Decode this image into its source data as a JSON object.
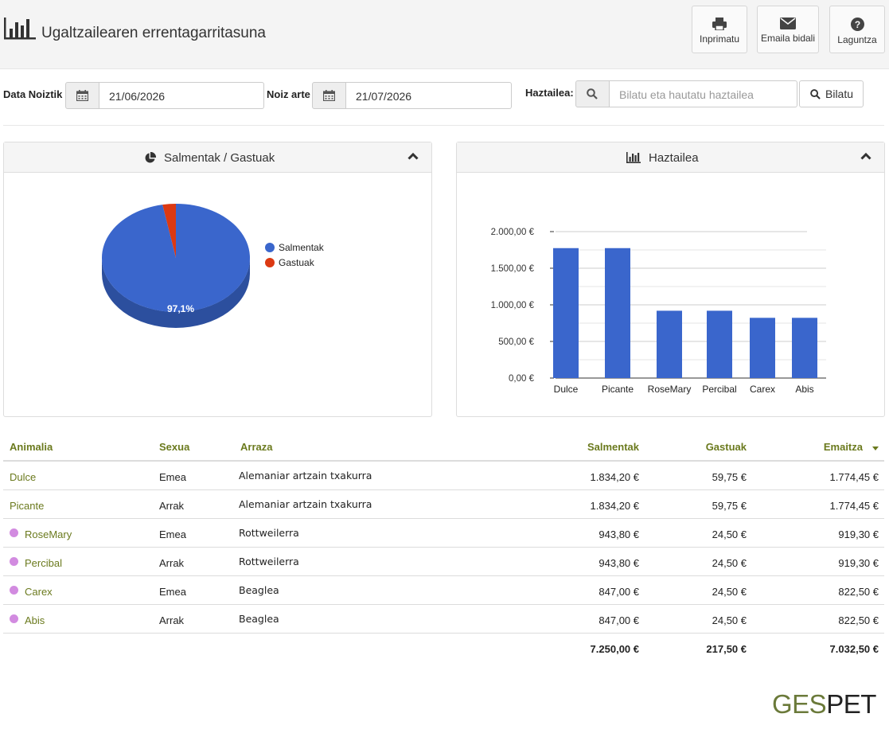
{
  "header": {
    "title": "Ugaltzailearen errentagarritasuna",
    "buttons": [
      {
        "label": "Inprimatu",
        "icon": "printer-icon"
      },
      {
        "label": "Emaila bidali",
        "icon": "envelope-icon"
      },
      {
        "label": "Laguntza",
        "icon": "question-icon"
      }
    ]
  },
  "filters": {
    "from_label": "Data Noiztik",
    "from_value": "21/06/2026",
    "to_label": "Noiz arte",
    "to_value": "21/07/2026",
    "breeder_label": "Haztailea:",
    "breeder_placeholder": "Bilatu eta hautatu haztailea",
    "search_label": "Bilatu"
  },
  "pie_panel": {
    "title": "Salmentak / Gastuak",
    "slice_label": "97,1%"
  },
  "bar_panel": {
    "title": "Haztailea"
  },
  "colors": {
    "accent_green": "#6b7a1e",
    "bar_blue": "#3a66cc",
    "slice_red": "#dc3912",
    "dot_purple": "#d28be0"
  },
  "chart_data": [
    {
      "type": "pie",
      "categories": [
        "Salmentak",
        "Gastuak"
      ],
      "values": [
        97.1,
        2.9
      ],
      "legend": "right"
    },
    {
      "type": "bar",
      "categories": [
        "Dulce",
        "Picante",
        "RoseMary",
        "Percibal",
        "Carex",
        "Abis"
      ],
      "values": [
        1774.45,
        1774.45,
        919.3,
        919.3,
        822.5,
        822.5
      ],
      "yticks": [
        "0,00 €",
        "500,00 €",
        "1.000,00 €",
        "1.500,00 €",
        "2.000,00 €"
      ],
      "ylim": [
        0,
        2000
      ],
      "grid": true
    }
  ],
  "table": {
    "headers": {
      "animal": "Animalia",
      "sex": "Sexua",
      "breed": "Arraza",
      "sales": "Salmentak",
      "expenses": "Gastuak",
      "result": "Emaitza"
    },
    "rows": [
      {
        "animal": "Dulce",
        "sex": "Emea",
        "breed": "Alemaniar artzain txakurra",
        "sales": "1.834,20 €",
        "expenses": "59,75 €",
        "result": "1.774,45 €",
        "dot": false
      },
      {
        "animal": "Picante",
        "sex": "Arrak",
        "breed": "Alemaniar artzain txakurra",
        "sales": "1.834,20 €",
        "expenses": "59,75 €",
        "result": "1.774,45 €",
        "dot": false
      },
      {
        "animal": "RoseMary",
        "sex": "Emea",
        "breed": "Rottweilerra",
        "sales": "943,80 €",
        "expenses": "24,50 €",
        "result": "919,30 €",
        "dot": true
      },
      {
        "animal": "Percibal",
        "sex": "Arrak",
        "breed": "Rottweilerra",
        "sales": "943,80 €",
        "expenses": "24,50 €",
        "result": "919,30 €",
        "dot": true
      },
      {
        "animal": "Carex",
        "sex": "Emea",
        "breed": "Beaglea",
        "sales": "847,00 €",
        "expenses": "24,50 €",
        "result": "822,50 €",
        "dot": true
      },
      {
        "animal": "Abis",
        "sex": "Arrak",
        "breed": "Beaglea",
        "sales": "847,00 €",
        "expenses": "24,50 €",
        "result": "822,50 €",
        "dot": true
      }
    ],
    "totals": {
      "sales": "7.250,00 €",
      "expenses": "217,50 €",
      "result": "7.032,50 €"
    }
  },
  "brand": {
    "part1": "GES",
    "part2": "PET"
  }
}
